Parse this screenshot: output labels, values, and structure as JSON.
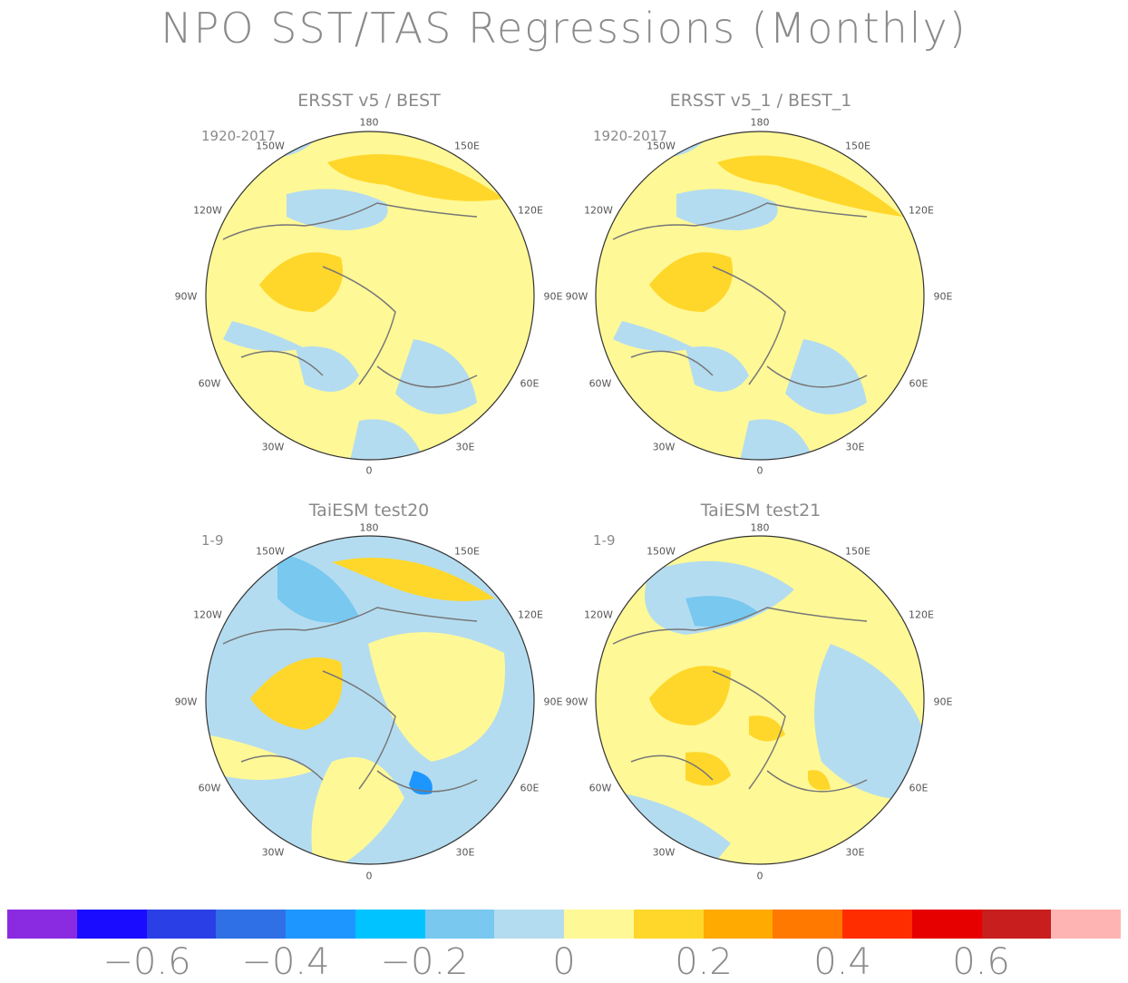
{
  "title": "NPO SST/TAS Regressions (Monthly)",
  "panels": [
    {
      "title": "ERSST v5 / BEST",
      "period": "1920-2017"
    },
    {
      "title": "ERSST v5_1 / BEST_1",
      "period": "1920-2017"
    },
    {
      "title": "TaiESM test20",
      "period": "1-9"
    },
    {
      "title": "TaiESM test21",
      "period": "1-9"
    }
  ],
  "longitude_labels": {
    "top": "180",
    "upper_left": "150W",
    "upper_right": "150E",
    "left_upper": "120W",
    "right_upper": "120E",
    "left": "90W",
    "right": "90E",
    "left_lower": "60W",
    "right_lower": "60E",
    "lower_left": "30W",
    "lower_right": "30E",
    "bottom": "0"
  },
  "colorbar": {
    "colors": [
      "#8a2be2",
      "#1a0dff",
      "#2a40e6",
      "#3070e6",
      "#1e96ff",
      "#00c3ff",
      "#78c8f0",
      "#b4dcf0",
      "#fff896",
      "#ffd72a",
      "#ffaa00",
      "#ff7800",
      "#ff2d00",
      "#e60000",
      "#c81e1e",
      "#ffb4b4"
    ],
    "tick_labels": [
      "−0.6",
      "−0.4",
      "−0.2",
      "0",
      "0.2",
      "0.4",
      "0.6"
    ]
  }
}
